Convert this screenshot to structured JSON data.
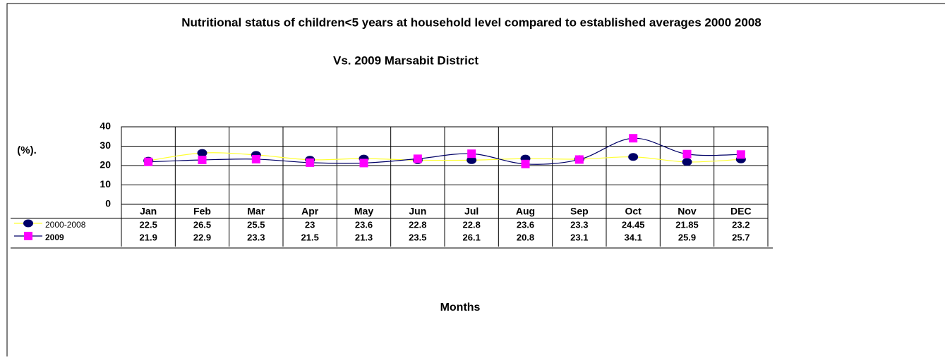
{
  "chart_data": {
    "type": "line",
    "title": "Nutritional status of children<5 years at household level compared to established averages 2000 2008",
    "subtitle": "Vs. 2009 Marsabit District",
    "y_label": "(%).",
    "x_label": "Months",
    "categories": [
      "Jan",
      "Feb",
      "Mar",
      "Apr",
      "May",
      "Jun",
      "Jul",
      "Aug",
      "Sep",
      "Oct",
      "Nov",
      "DEC"
    ],
    "series": [
      {
        "name": "2000-2008",
        "color": "#000066",
        "line_color": "#ffff33",
        "marker": "ellipse",
        "values": [
          22.5,
          26.5,
          25.5,
          23,
          23.6,
          22.8,
          22.8,
          23.6,
          23.3,
          24.45,
          21.85,
          23.2
        ]
      },
      {
        "name": "2009",
        "color": "#ff00ff",
        "line_color": "#000066",
        "marker": "square",
        "values": [
          21.9,
          22.9,
          23.3,
          21.5,
          21.3,
          23.5,
          26.1,
          20.8,
          23.1,
          34.1,
          25.9,
          25.7
        ]
      }
    ],
    "ylim": [
      0,
      40
    ],
    "yticks": [
      0,
      10,
      20,
      30,
      40
    ],
    "grid": true
  }
}
